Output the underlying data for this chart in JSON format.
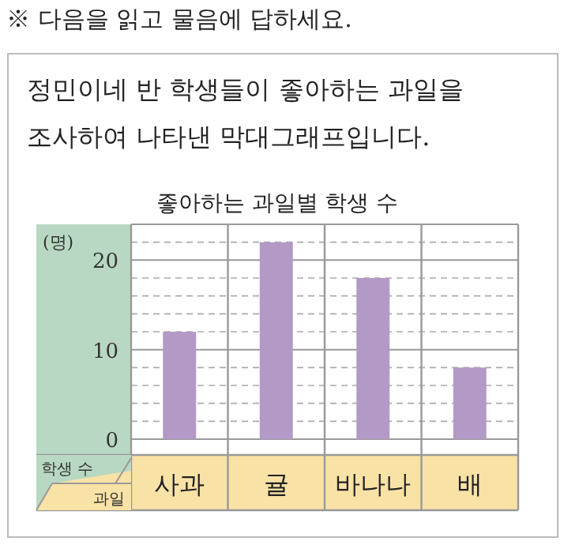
{
  "chart_data": {
    "type": "bar",
    "title": "좋아하는 과일별 학생 수",
    "subtitle": "정민이네 반 학생들이 좋아하는 과일을 조사하여 나타낸 막대그래프입니다.",
    "annotations": [
      "※ 다음을 읽고 물음에 답하세요.",
      "(명)"
    ],
    "xlabel": "과일",
    "ylabel": "학생 수",
    "categories": [
      "사과",
      "귤",
      "바나나",
      "배"
    ],
    "values": [
      12,
      22,
      18,
      8
    ],
    "color": "#b39ac6",
    "ylim": [
      0,
      24
    ],
    "yticks": [
      0,
      {
        "value": 2,
        "label": null
      },
      {
        "value": 4,
        "label": null
      },
      {
        "value": 6,
        "label": null
      },
      {
        "value": 8,
        "label": null
      },
      10,
      {
        "value": 12,
        "label": null
      },
      {
        "value": 14,
        "label": null
      },
      {
        "value": 16,
        "label": null
      },
      {
        "value": 18,
        "label": null
      },
      20,
      {
        "value": 22,
        "label": null
      }
    ],
    "grid": "y"
  }
}
